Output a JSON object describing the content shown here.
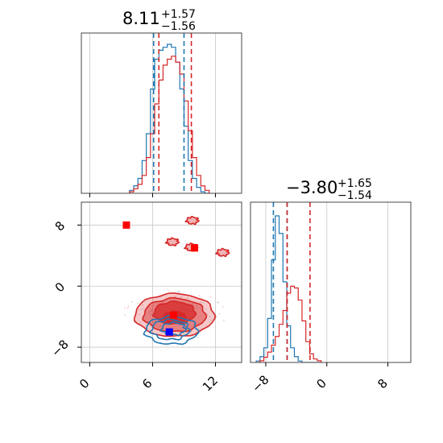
{
  "chart_data": {
    "type": "corner",
    "colors": {
      "blue": "#1f77b4",
      "red": "#d62728",
      "grid": "#c8c8c8"
    },
    "params": [
      {
        "median": "8.11",
        "plus": "+1.57",
        "minus": "−1.56",
        "ticks": [
          0,
          6,
          12
        ],
        "tick_labels": [
          "0",
          "6",
          "12"
        ],
        "range": [
          -0.8,
          14.5
        ],
        "quantiles": {
          "blue": [
            6.1,
            9.0
          ],
          "red": [
            6.6,
            9.7
          ]
        },
        "hist_bin_centers": [
          4.0,
          4.4,
          4.8,
          5.2,
          5.6,
          6.0,
          6.4,
          6.8,
          7.2,
          7.6,
          8.0,
          8.4,
          8.8,
          9.2,
          9.6,
          10.0,
          10.4,
          10.8,
          11.2
        ],
        "hist_blue": [
          2,
          5,
          10,
          22,
          40,
          70,
          90,
          96,
          98,
          100,
          98,
          88,
          70,
          45,
          22,
          10,
          4,
          1,
          0
        ],
        "hist_red": [
          1,
          3,
          6,
          12,
          24,
          40,
          60,
          76,
          86,
          90,
          92,
          88,
          80,
          62,
          42,
          24,
          12,
          5,
          2
        ]
      },
      {
        "median": "−3.80",
        "plus": "+1.65",
        "minus": "−1.54",
        "ticks": [
          -8,
          0,
          8
        ],
        "tick_labels": [
          "−8",
          "0",
          "8"
        ],
        "range": [
          -10.0,
          11.0
        ],
        "quantiles": {
          "blue": [
            -7.0,
            -5.2
          ],
          "red": [
            -5.2,
            -2.2
          ]
        },
        "hist_bin_centers": [
          -9.0,
          -8.5,
          -8.0,
          -7.5,
          -7.0,
          -6.5,
          -6.0,
          -5.5,
          -5.0,
          -4.5,
          -4.0,
          -3.5,
          -3.0,
          -2.5,
          -2.0,
          -1.5,
          -1.0
        ],
        "hist_blue": [
          1,
          4,
          10,
          30,
          70,
          100,
          88,
          55,
          25,
          10,
          4,
          1,
          0,
          0,
          0,
          0,
          0
        ],
        "hist_red": [
          0,
          1,
          3,
          6,
          10,
          15,
          22,
          30,
          40,
          44,
          43,
          36,
          24,
          12,
          5,
          2,
          1
        ]
      }
    ],
    "joint": {
      "red_markers": [
        {
          "x": 3.5,
          "y": 8.0
        },
        {
          "x": 10.0,
          "y": 5.0
        },
        {
          "x": 8.0,
          "y": -3.8
        }
      ],
      "blue_markers": [
        {
          "x": 7.6,
          "y": -6.0
        }
      ],
      "blue_center": {
        "x": 7.8,
        "y": -5.8
      },
      "blue_radii": {
        "x": 2.5,
        "y": 1.8
      },
      "red_center": {
        "x": 8.1,
        "y": -3.8
      },
      "red_radii": {
        "x": 3.8,
        "y": 2.8
      },
      "red_islands": [
        {
          "x": 9.8,
          "y": 8.6
        },
        {
          "x": 7.9,
          "y": 5.8
        },
        {
          "x": 9.7,
          "y": 5.1
        },
        {
          "x": 12.7,
          "y": 4.4
        }
      ]
    }
  }
}
